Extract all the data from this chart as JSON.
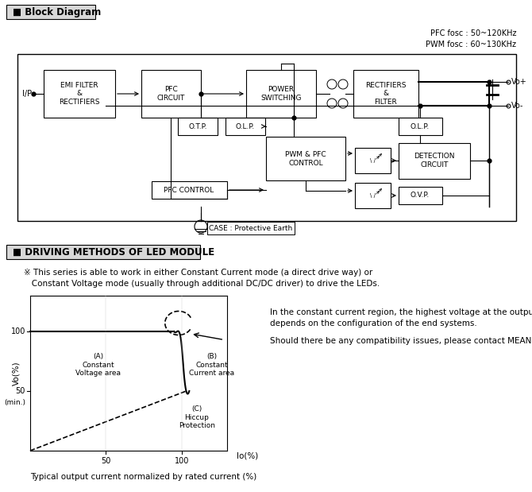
{
  "bg_color": "#ffffff",
  "section1_title": "■ Block Diagram",
  "pfc_fosc": "PFC fosc : 50~120KHz",
  "pwm_fosc": "PWM fosc : 60~130KHz",
  "section2_title": "■ DRIVING METHODS OF LED MODULE",
  "note_line1": "※ This series is able to work in either Constant Current mode (a direct drive way) or",
  "note_line2": "   Constant Voltage mode (usually through additional DC/DC driver) to drive the LEDs.",
  "right_text1": "In the constant current region, the highest voltage at the output of the driver",
  "right_text2": "depends on the configuration of the end systems.",
  "right_text3": "Should there be any compatibility issues, please contact MEAN WELL.",
  "bottom_text": "Typical output current normalized by rated current (%)",
  "graph_xlabel": "Io(%)",
  "graph_ylabel": "Vo(%)",
  "label_A": "(A)\nConstant\nVoltage area",
  "label_B": "(B)\nConstant\nCurrent area",
  "label_C": "(C)\nHiccup\nProtection",
  "case_text": "CASE : Protective Earth"
}
